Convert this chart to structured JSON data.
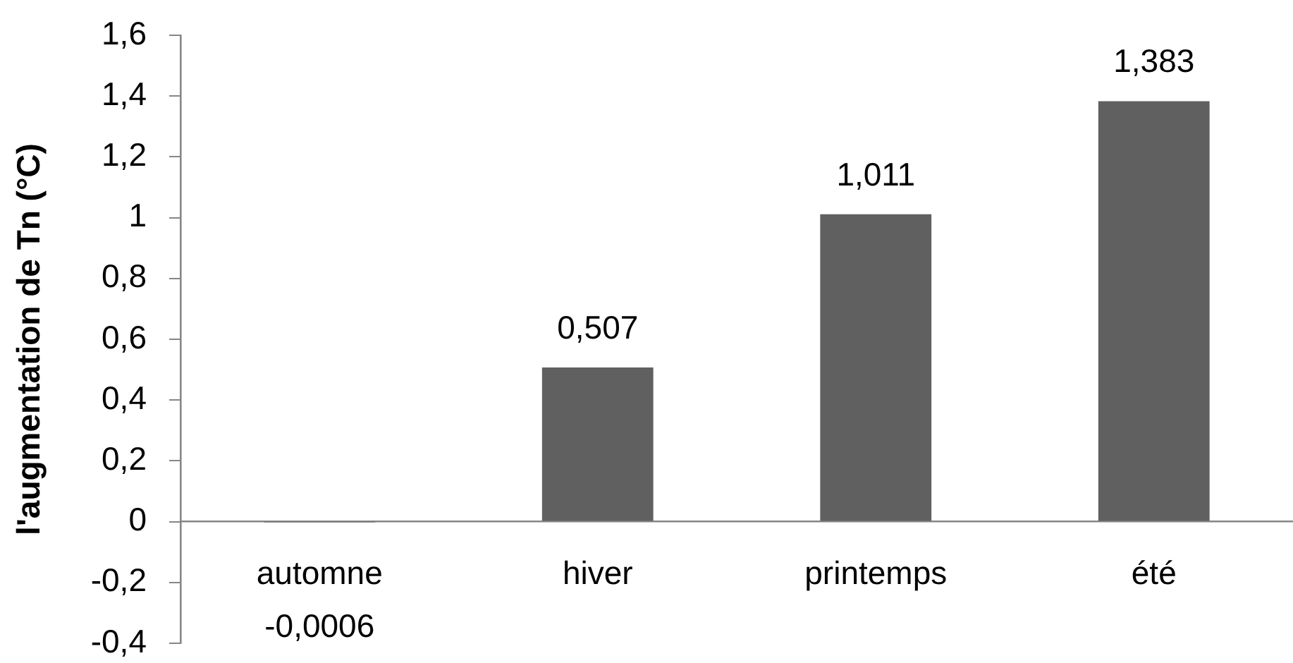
{
  "chart_data": {
    "type": "bar",
    "ylabel": "l'augmentation de Tn (°C)",
    "categories": [
      "automne",
      "hiver",
      "printemps",
      "été"
    ],
    "values": [
      -0.0006,
      0.507,
      1.011,
      1.383
    ],
    "value_labels": [
      "-0,0006",
      "0,507",
      "1,011",
      "1,383"
    ],
    "color": "#606060",
    "ylim": [
      -0.4,
      1.6
    ],
    "yticks": [
      {
        "value": -0.4,
        "label": "-0,4"
      },
      {
        "value": -0.2,
        "label": "-0,2"
      },
      0,
      {
        "value": 0.2,
        "label": "0,2"
      },
      {
        "value": 0.4,
        "label": "0,4"
      },
      {
        "value": 0.6,
        "label": "0,6"
      },
      {
        "value": 0.8,
        "label": "0,8"
      },
      1,
      {
        "value": 1.2,
        "label": "1,2"
      },
      {
        "value": 1.4,
        "label": "1,4"
      },
      {
        "value": 1.6,
        "label": "1,6"
      }
    ],
    "grid": false,
    "legend": false
  }
}
